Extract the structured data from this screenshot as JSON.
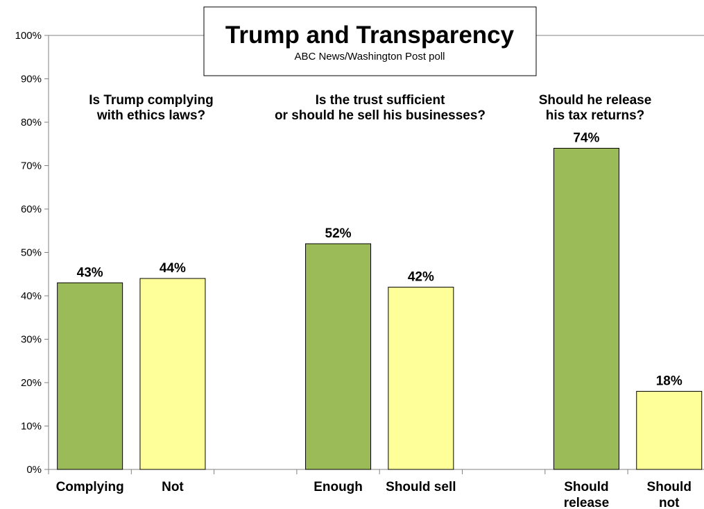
{
  "chart_data": {
    "type": "bar",
    "title": "Trump and Transparency",
    "subtitle": "ABC News/Washington  Post poll",
    "ylim": [
      0,
      100
    ],
    "yticks": [
      "0%",
      "10%",
      "20%",
      "30%",
      "40%",
      "50%",
      "60%",
      "70%",
      "80%",
      "90%",
      "100%"
    ],
    "groups": [
      {
        "question": [
          "Is Trump complying",
          "with ethics laws?"
        ],
        "bars": [
          {
            "label": [
              "Complying"
            ],
            "value": 43,
            "value_label": "43%",
            "color": "#9bbb59"
          },
          {
            "label": [
              "Not"
            ],
            "value": 44,
            "value_label": "44%",
            "color": "#ffff99"
          }
        ]
      },
      {
        "question": [
          "Is the trust sufficient",
          "or should he sell his businesses?"
        ],
        "bars": [
          {
            "label": [
              "Enough"
            ],
            "value": 52,
            "value_label": "52%",
            "color": "#9bbb59"
          },
          {
            "label": [
              "Should sell"
            ],
            "value": 42,
            "value_label": "42%",
            "color": "#ffff99"
          }
        ]
      },
      {
        "question": [
          "Should he release",
          "his tax returns?"
        ],
        "bars": [
          {
            "label": [
              "Should",
              "release"
            ],
            "value": 74,
            "value_label": "74%",
            "color": "#9bbb59"
          },
          {
            "label": [
              "Should",
              "not"
            ],
            "value": 18,
            "value_label": "18%",
            "color": "#ffff99"
          }
        ]
      }
    ],
    "grid": false,
    "legend": "none"
  }
}
